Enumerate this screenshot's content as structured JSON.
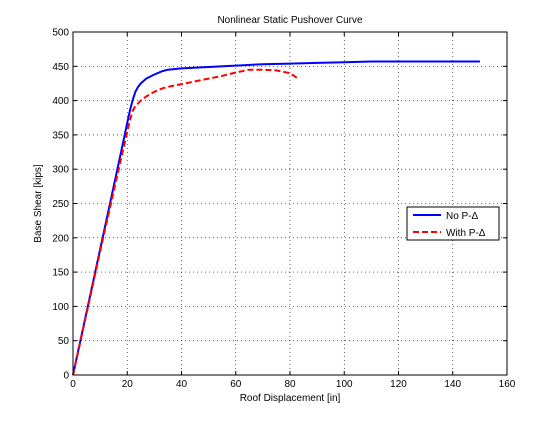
{
  "chart_data": {
    "type": "line",
    "title": "Nonlinear Static Pushover Curve",
    "xlabel": "Roof Displacement [in]",
    "ylabel": "Base Shear [kips]",
    "xlim": [
      0,
      160
    ],
    "ylim": [
      0,
      500
    ],
    "xticks": [
      "0",
      "20",
      "40",
      "60",
      "80",
      "100",
      "120",
      "140",
      "160"
    ],
    "yticks": [
      "0",
      "50",
      "100",
      "150",
      "200",
      "250",
      "300",
      "350",
      "400",
      "450",
      "500"
    ],
    "grid": true,
    "legend_position": "right",
    "series": [
      {
        "name": "No P-Δ",
        "color": "#0000ff",
        "style": "solid",
        "x": [
          0,
          5,
          10,
          15,
          18,
          20,
          21,
          22,
          23,
          24,
          25,
          27,
          30,
          33,
          35,
          40,
          50,
          60,
          70,
          80,
          90,
          100,
          110,
          120,
          130,
          140,
          150
        ],
        "y": [
          0,
          92,
          183,
          275,
          330,
          368,
          386,
          401,
          413,
          420,
          425,
          432,
          438,
          443,
          445,
          447,
          449,
          451,
          453,
          454,
          455,
          456,
          457,
          457,
          457,
          457,
          457
        ]
      },
      {
        "name": "With P-Δ",
        "color": "#ff0000",
        "style": "dashed",
        "x": [
          0,
          5,
          10,
          15,
          18,
          20,
          21,
          22,
          23,
          25,
          27,
          30,
          33,
          35,
          40,
          45,
          50,
          55,
          60,
          65,
          70,
          75,
          80,
          83
        ],
        "y": [
          0,
          90,
          180,
          268,
          320,
          355,
          372,
          385,
          392,
          400,
          406,
          413,
          418,
          420,
          424,
          428,
          432,
          436,
          441,
          445,
          445,
          444,
          440,
          432
        ]
      }
    ]
  }
}
